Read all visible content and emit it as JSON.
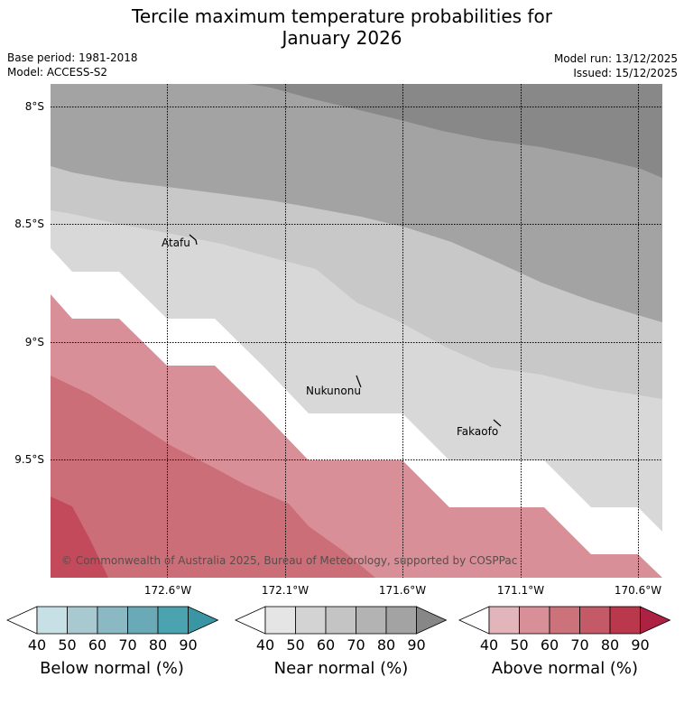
{
  "title": {
    "line1": "Tercile maximum temperature probabilities for",
    "line2": "January 2026"
  },
  "meta": {
    "base_period": "Base period: 1981-2018",
    "model": "Model: ACCESS-S2",
    "model_run": "Model run: 13/12/2025",
    "issued": "Issued: 15/12/2025"
  },
  "axes": {
    "lat_labels": [
      "8°S",
      "8.5°S",
      "9°S",
      "9.5°S"
    ],
    "lon_labels": [
      "172.6°W",
      "172.1°W",
      "171.6°W",
      "171.1°W",
      "170.6°W"
    ]
  },
  "islands": [
    {
      "name": "Atafu"
    },
    {
      "name": "Nukunonu"
    },
    {
      "name": "Fakaofo"
    }
  ],
  "copyright": "© Commonwealth of Australia 2025, Bureau of Meteorology, supported by COSPPac",
  "colorbars": [
    {
      "label": "Below normal (%)",
      "ticks": [
        "40",
        "50",
        "60",
        "70",
        "80",
        "90"
      ],
      "colors": [
        "#ffffff",
        "#c6e0e6",
        "#a8c9cf",
        "#8ab9c3",
        "#6aaab6",
        "#4ba3b0",
        "#3a96a3"
      ]
    },
    {
      "label": "Near normal (%)",
      "ticks": [
        "40",
        "50",
        "60",
        "70",
        "80",
        "90"
      ],
      "colors": [
        "#ffffff",
        "#e5e5e5",
        "#d3d3d3",
        "#c4c4c4",
        "#b3b3b3",
        "#a3a3a3",
        "#878787"
      ]
    },
    {
      "label": "Above normal (%)",
      "ticks": [
        "40",
        "50",
        "60",
        "70",
        "80",
        "90"
      ],
      "colors": [
        "#ffffff",
        "#e2b5bb",
        "#d88f97",
        "#cc727b",
        "#c45a68",
        "#b9384b",
        "#ad2143"
      ]
    }
  ],
  "legend_colors": {
    "near_50": "#d9d9d9",
    "near_60": "#c8c8c8",
    "near_70": "#a3a3a3",
    "near_80": "#888888",
    "above_50": "#d88f97",
    "above_60": "#cc6e78",
    "above_70": "#c24a5b"
  }
}
